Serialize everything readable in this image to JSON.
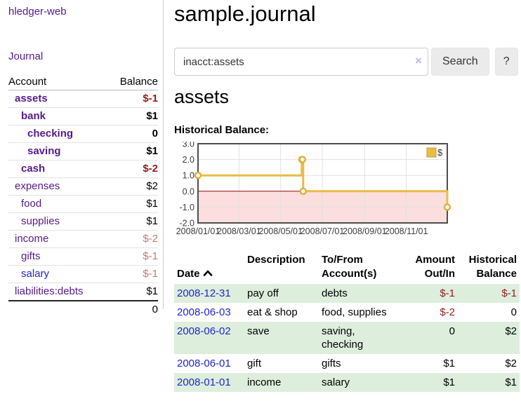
{
  "colors": {
    "purple": "#551a8b",
    "blue": "#2323cc",
    "negative": "#8f1d1d",
    "negative_muted": "#bb7b7b",
    "stripe_green": "#ddeedd",
    "button_bg": "#ebebeb",
    "chart_line": "#e9bc45",
    "chart_marker_stroke": "#dfae35",
    "chart_negative_fill": "#fcdede",
    "chart_zero_line": "#990000",
    "chart_border": "#4d4d4d",
    "chart_grid": "#e0e0e0",
    "chart_tick_text": "#3c3c3c"
  },
  "sidebar": {
    "brand": "hledger-web",
    "journal_label": "Journal",
    "accounts_table": {
      "headers": [
        "Account",
        "Balance"
      ],
      "rows": [
        {
          "name": "assets",
          "depth": 0,
          "bold": true,
          "link": "purple",
          "balance": "$-1",
          "neg": "dark"
        },
        {
          "name": "bank",
          "depth": 1,
          "bold": true,
          "link": "purple",
          "balance": "$1",
          "neg": null
        },
        {
          "name": "checking",
          "depth": 2,
          "bold": true,
          "link": "purple",
          "balance": "0",
          "neg": null
        },
        {
          "name": "saving",
          "depth": 2,
          "bold": true,
          "link": "purple",
          "balance": "$1",
          "neg": null
        },
        {
          "name": "cash",
          "depth": 1,
          "bold": true,
          "link": "purple",
          "balance": "$-2",
          "neg": "dark"
        },
        {
          "name": "expenses",
          "depth": 0,
          "bold": false,
          "link": "purple",
          "balance": "$2",
          "neg": null
        },
        {
          "name": "food",
          "depth": 1,
          "bold": false,
          "link": "purple",
          "balance": "$1",
          "neg": null
        },
        {
          "name": "supplies",
          "depth": 1,
          "bold": false,
          "link": "purple",
          "balance": "$1",
          "neg": null
        },
        {
          "name": "income",
          "depth": 0,
          "bold": false,
          "link": "purple",
          "balance": "$-2",
          "neg": "muted"
        },
        {
          "name": "gifts",
          "depth": 1,
          "bold": false,
          "link": "purple",
          "balance": "$-1",
          "neg": "muted"
        },
        {
          "name": "salary",
          "depth": 1,
          "bold": false,
          "link": "blue",
          "balance": "$-1",
          "neg": "muted"
        },
        {
          "name": "liabilities:debts",
          "depth": 0,
          "bold": false,
          "link": "purple",
          "balance": "$1",
          "neg": null
        }
      ],
      "total": "0"
    }
  },
  "main": {
    "title": "sample.journal",
    "search": {
      "value": "inacct:assets",
      "clear_icon": "×",
      "button_label": "Search",
      "help_label": "?"
    },
    "account_heading": "assets",
    "chart_label": "Historical Balance:"
  },
  "chart_data": {
    "type": "line",
    "title": "Historical Balance:",
    "legend": [
      {
        "label": "$",
        "position": "top-right"
      }
    ],
    "series": [
      {
        "name": "$",
        "step": true,
        "points": [
          {
            "x": "2008-01-01",
            "y": 1
          },
          {
            "x": "2008-06-01",
            "y": 2
          },
          {
            "x": "2008-06-02",
            "y": 2
          },
          {
            "x": "2008-06-03",
            "y": 0
          },
          {
            "x": "2008-12-31",
            "y": -1
          }
        ]
      }
    ],
    "xrange": [
      "2008-01-01",
      "2008-12-31"
    ],
    "ylim": [
      -2.0,
      3.0
    ],
    "yticks": [
      "3.0",
      "2.0",
      "1.0",
      "0.0",
      "-1.0",
      "-2.0"
    ],
    "ytick_values": [
      3,
      2,
      1,
      0,
      -1,
      -2
    ],
    "xticks": [
      "2008/01/01",
      "2008/03/01",
      "2008/05/01",
      "2008/07/01",
      "2008/09/01",
      "2008/11/01"
    ],
    "xtick_dates": [
      "2008-01-01",
      "2008-03-01",
      "2008-05-01",
      "2008-07-01",
      "2008-09-01",
      "2008-11-01"
    ],
    "grid": true,
    "negative_region_shaded": true
  },
  "register": {
    "headers": [
      {
        "label": "Date",
        "sort": "asc",
        "align": "left"
      },
      {
        "label": "Description",
        "align": "left"
      },
      {
        "label": "To/From\nAccount(s)",
        "align": "left"
      },
      {
        "label": "Amount\nOut/In",
        "align": "right"
      },
      {
        "label": "Historical\nBalance",
        "align": "right"
      }
    ],
    "rows": [
      {
        "date": "2008-12-31",
        "description": "pay off",
        "accounts": "debts",
        "amount": "$-1",
        "amount_neg": true,
        "balance": "$-1",
        "balance_neg": true
      },
      {
        "date": "2008-06-03",
        "description": "eat & shop",
        "accounts": "food, supplies",
        "amount": "$-2",
        "amount_neg": true,
        "balance": "0",
        "balance_neg": false
      },
      {
        "date": "2008-06-02",
        "description": "save",
        "accounts": "saving, checking",
        "amount": "0",
        "amount_neg": false,
        "balance": "$2",
        "balance_neg": false
      },
      {
        "date": "2008-06-01",
        "description": "gift",
        "accounts": "gifts",
        "amount": "$1",
        "amount_neg": false,
        "balance": "$2",
        "balance_neg": false
      },
      {
        "date": "2008-01-01",
        "description": "income",
        "accounts": "salary",
        "amount": "$1",
        "amount_neg": false,
        "balance": "$1",
        "balance_neg": false
      }
    ]
  }
}
